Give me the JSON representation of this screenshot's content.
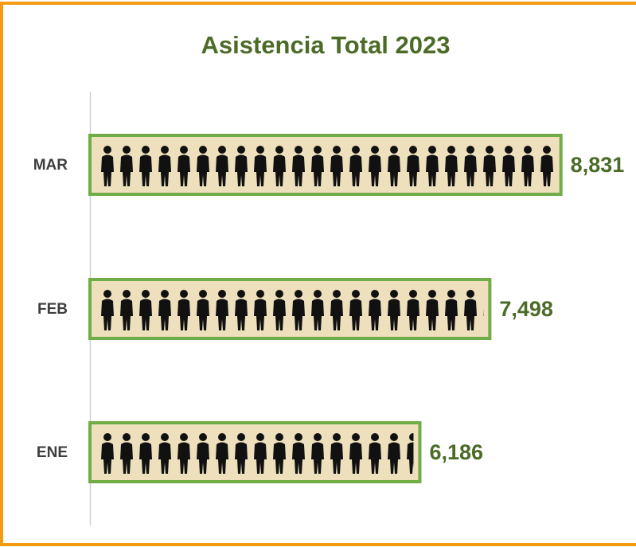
{
  "chart_data": {
    "type": "bar",
    "orientation": "horizontal",
    "title": "Asistencia Total 2023",
    "categories": [
      "ENE",
      "FEB",
      "MAR"
    ],
    "values": [
      6186,
      7498,
      8831
    ],
    "value_labels": [
      "6,186",
      "7,498",
      "8,831"
    ],
    "color": "#70ad47",
    "xlim": [
      0,
      10000
    ]
  }
}
